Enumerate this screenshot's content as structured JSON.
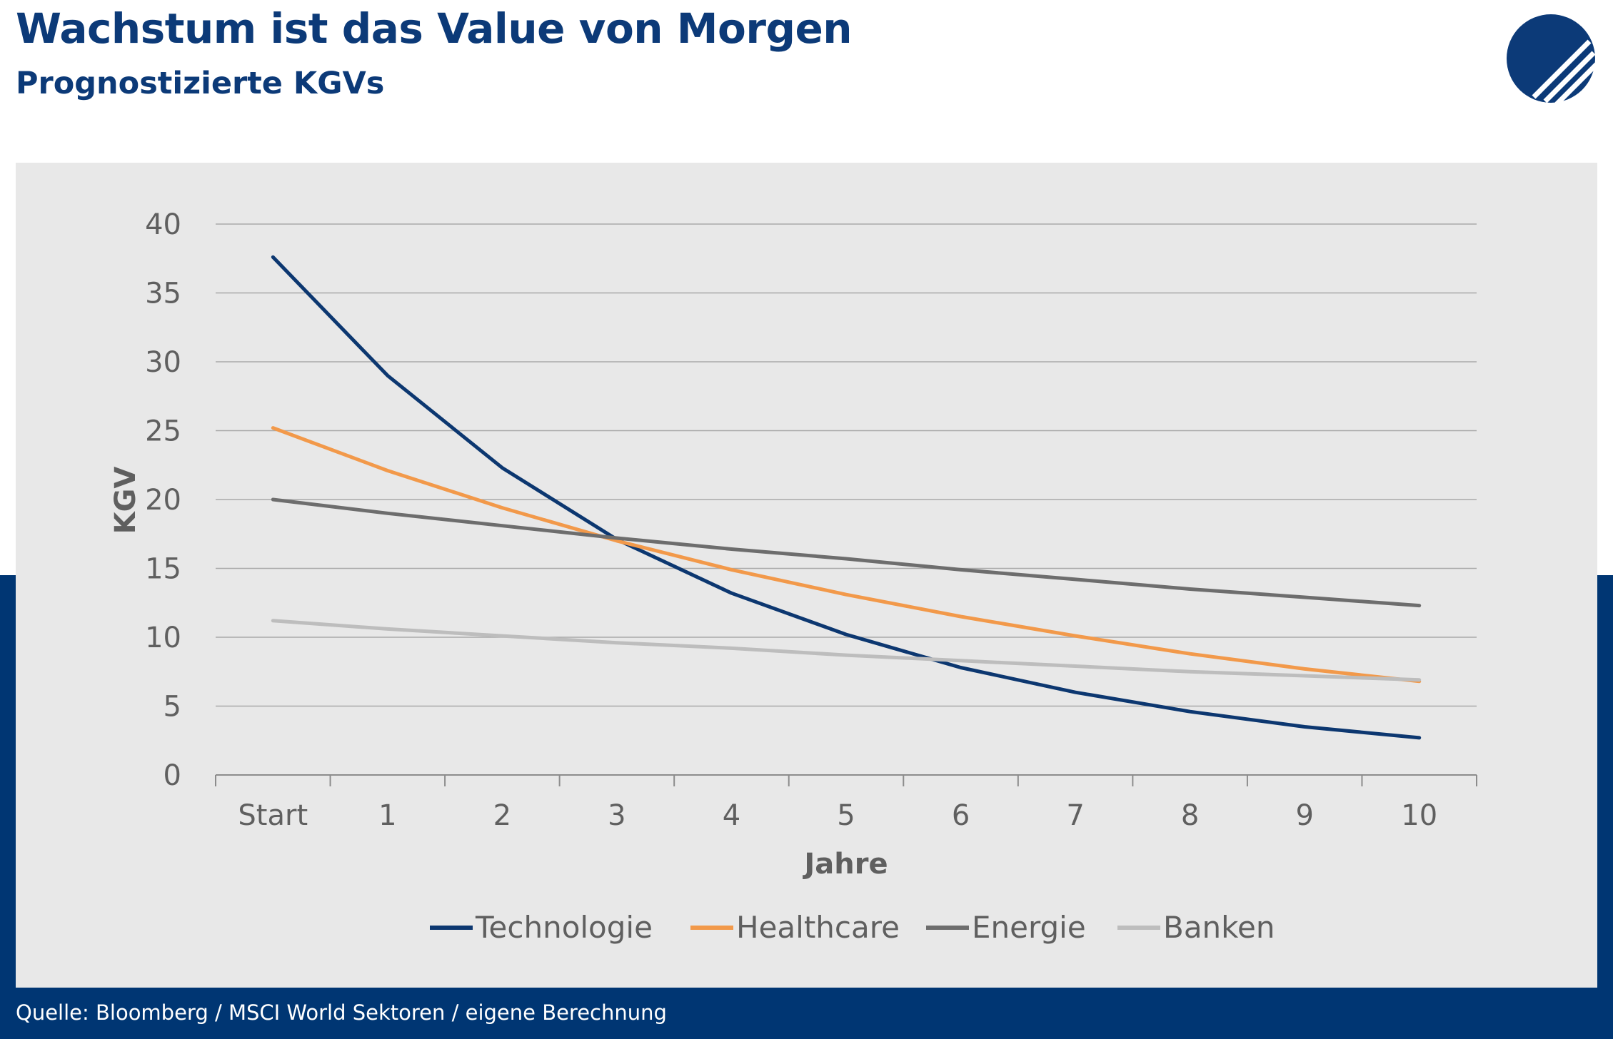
{
  "header": {
    "title": "Wachstum ist das Value von Morgen",
    "subtitle": "Prognostizierte KGVs"
  },
  "footer": {
    "source": "Quelle: Bloomberg / MSCI World Sektoren / eigene Berechnung"
  },
  "colors": {
    "brand_blue": "#003673",
    "title_blue": "#0c3a78",
    "panel_bg": "#e8e8e8"
  },
  "chart_data": {
    "type": "line",
    "title": "",
    "xlabel": "Jahre",
    "ylabel": "KGV",
    "categories": [
      "Start",
      "1",
      "2",
      "3",
      "4",
      "5",
      "6",
      "7",
      "8",
      "9",
      "10"
    ],
    "ylim": [
      0,
      40
    ],
    "yticks": [
      0,
      5,
      10,
      15,
      20,
      25,
      30,
      35,
      40
    ],
    "grid": true,
    "legend_position": "bottom",
    "series": [
      {
        "name": "Technologie",
        "color": "#0c3770",
        "values": [
          37.6,
          29.0,
          22.3,
          17.1,
          13.2,
          10.2,
          7.8,
          6.0,
          4.6,
          3.5,
          2.7
        ]
      },
      {
        "name": "Healthcare",
        "color": "#f2994a",
        "values": [
          25.2,
          22.1,
          19.4,
          17.0,
          14.9,
          13.1,
          11.5,
          10.1,
          8.8,
          7.7,
          6.8
        ]
      },
      {
        "name": "Energie",
        "color": "#6d6d6d",
        "values": [
          20.0,
          19.0,
          18.1,
          17.2,
          16.4,
          15.7,
          14.9,
          14.2,
          13.5,
          12.9,
          12.3
        ]
      },
      {
        "name": "Banken",
        "color": "#bdbdbd",
        "values": [
          11.2,
          10.6,
          10.1,
          9.6,
          9.2,
          8.7,
          8.3,
          7.9,
          7.5,
          7.2,
          6.9
        ]
      }
    ]
  }
}
